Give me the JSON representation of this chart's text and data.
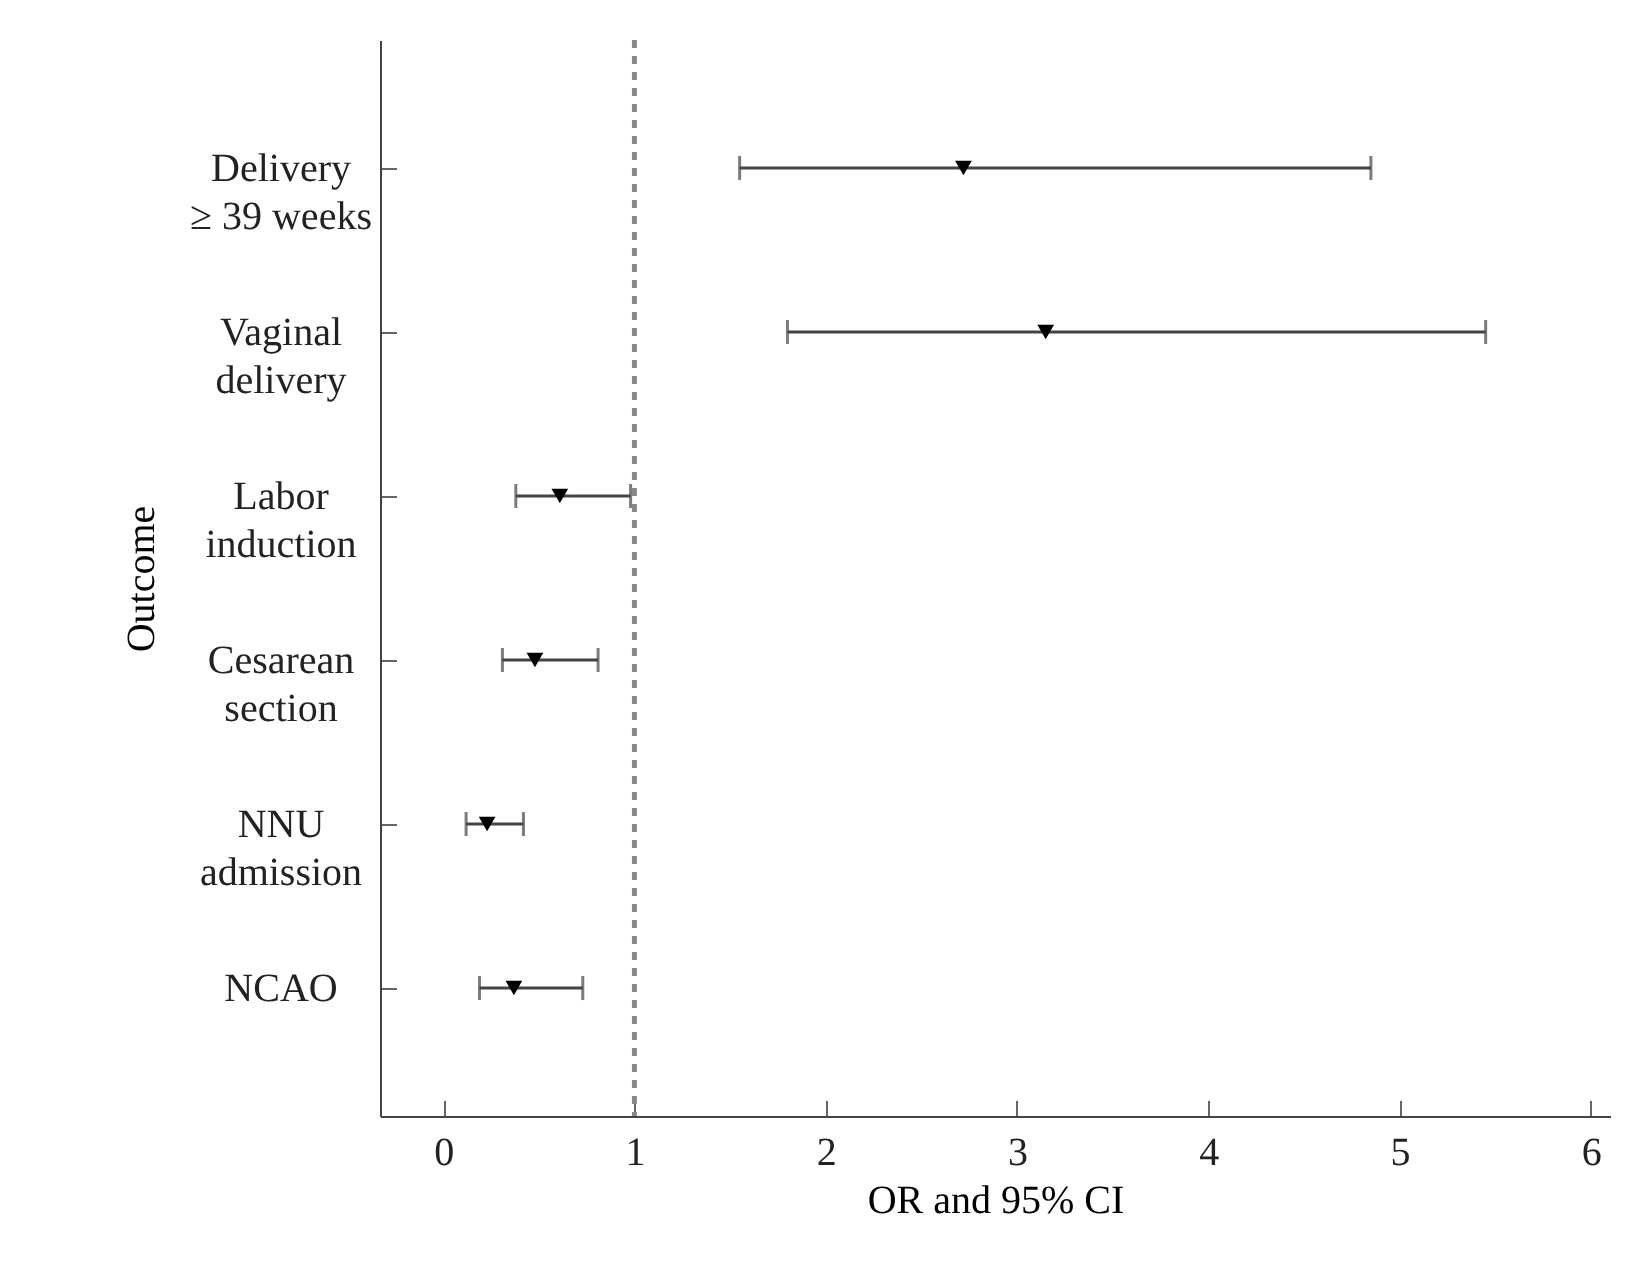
{
  "chart_data": {
    "type": "scatter",
    "orientation": "horizontal",
    "xlabel": "OR and 95% CI",
    "ylabel": "Outcome",
    "categories": [
      "Delivery\n≥ 39 weeks",
      "Vaginal\ndelivery",
      "Labor\ninduction",
      "Cesarean\nsection",
      "NNU\nadmission",
      "NCAO"
    ],
    "series": [
      {
        "color": "#000000",
        "values": [
          2.72,
          3.15,
          0.61,
          0.48,
          0.23,
          0.37
        ],
        "errors": [
          [
            1.55,
            4.85
          ],
          [
            1.8,
            5.45
          ],
          [
            0.38,
            0.98
          ],
          [
            0.31,
            0.81
          ],
          [
            0.12,
            0.42
          ],
          [
            0.19,
            0.73
          ]
        ]
      }
    ],
    "xlim": [
      -0.33,
      6.1
    ],
    "xticks": [
      0,
      1,
      2,
      3,
      4,
      5,
      6
    ],
    "marker": "triangle",
    "ref_lines": [
      {
        "axis": "x",
        "value": 1,
        "color": "#888888",
        "line_style": "dashed"
      }
    ],
    "grid": false
  }
}
